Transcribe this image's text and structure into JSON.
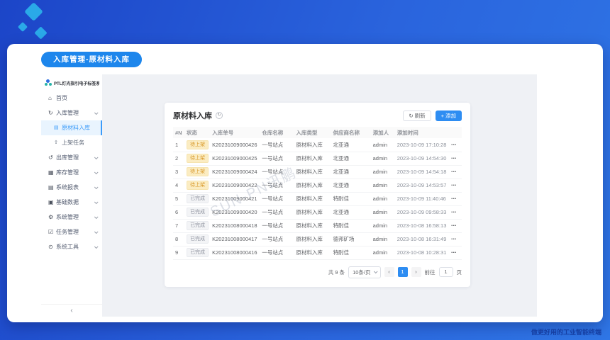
{
  "page_badge": "入库管理-原材料入库",
  "footer": "做更好用的工业智能终端",
  "watermark": "SUN-PN讯鹏",
  "colors": {
    "accent_blue": "#2e8df2",
    "pill_blue": "#1d86ec",
    "warning_tag": "#d99a2b",
    "sidebar_active": "#3b9bfa"
  },
  "sidebar": {
    "logo_text": "PTL灯光指引电子标签系统",
    "collapse_icon": "chevron-left-icon",
    "items": [
      {
        "label": "首页",
        "icon": "home-icon",
        "caret": false
      },
      {
        "label": "入库管理",
        "icon": "inbound-icon",
        "caret": true,
        "expanded": true,
        "children": [
          {
            "label": "原材料入库",
            "icon": "material-doc-icon",
            "active": true
          },
          {
            "label": "上架任务",
            "icon": "shelving-icon",
            "active": false
          }
        ]
      },
      {
        "label": "出库管理",
        "icon": "outbound-icon",
        "caret": true
      },
      {
        "label": "库存管理",
        "icon": "inventory-icon",
        "caret": true
      },
      {
        "label": "系统报表",
        "icon": "report-icon",
        "caret": true
      },
      {
        "label": "基础数据",
        "icon": "base-data-icon",
        "caret": true
      },
      {
        "label": "系统管理",
        "icon": "gear-icon",
        "caret": true
      },
      {
        "label": "任务管理",
        "icon": "task-icon",
        "caret": true
      },
      {
        "label": "系统工具",
        "icon": "tools-icon",
        "caret": true
      }
    ]
  },
  "panel": {
    "title": "原材料入库",
    "title_info_icon": "refresh-circle-icon",
    "buttons": {
      "refresh": "刷新",
      "refresh_icon": "refresh-icon",
      "add": "添加",
      "add_icon": "plus-icon"
    },
    "table": {
      "columns": [
        "#N",
        "状态",
        "入库单号",
        "仓库名称",
        "入库类型",
        "供应商名称",
        "添加人",
        "添加时间",
        ""
      ],
      "row_more_icon": "more-icon",
      "rows": [
        {
          "n": "1",
          "status": "待上架",
          "status_type": "warning",
          "order_no": "K20231009000426",
          "warehouse": "一号站点",
          "inbound_type": "原材料入库",
          "supplier": "北亚通",
          "added_by": "admin",
          "added_at": "2023-10-09 17:10:28"
        },
        {
          "n": "2",
          "status": "待上架",
          "status_type": "warning",
          "order_no": "K20231009000425",
          "warehouse": "一号站点",
          "inbound_type": "原材料入库",
          "supplier": "北亚通",
          "added_by": "admin",
          "added_at": "2023-10-09 14:54:30"
        },
        {
          "n": "3",
          "status": "待上架",
          "status_type": "warning",
          "order_no": "K20231009000424",
          "warehouse": "一号站点",
          "inbound_type": "原材料入库",
          "supplier": "北亚通",
          "added_by": "admin",
          "added_at": "2023-10-09 14:54:18"
        },
        {
          "n": "4",
          "status": "待上架",
          "status_type": "warning",
          "order_no": "K20231009000422",
          "warehouse": "一号站点",
          "inbound_type": "原材料入库",
          "supplier": "北亚通",
          "added_by": "admin",
          "added_at": "2023-10-09 14:53:57"
        },
        {
          "n": "5",
          "status": "已完成",
          "status_type": "info",
          "order_no": "K20231009000421",
          "warehouse": "一号站点",
          "inbound_type": "原材料入库",
          "supplier": "特耐佳",
          "added_by": "admin",
          "added_at": "2023-10-09 11:40:46"
        },
        {
          "n": "6",
          "status": "已完成",
          "status_type": "info",
          "order_no": "K20231009000420",
          "warehouse": "一号站点",
          "inbound_type": "原材料入库",
          "supplier": "北亚通",
          "added_by": "admin",
          "added_at": "2023-10-09 09:58:33"
        },
        {
          "n": "7",
          "status": "已完成",
          "status_type": "info",
          "order_no": "K20231008000418",
          "warehouse": "一号站点",
          "inbound_type": "原材料入库",
          "supplier": "特耐佳",
          "added_by": "admin",
          "added_at": "2023-10-08 16:58:13"
        },
        {
          "n": "8",
          "status": "已完成",
          "status_type": "info",
          "order_no": "K20231008000417",
          "warehouse": "一号站点",
          "inbound_type": "原材料入库",
          "supplier": "德邦矿场",
          "added_by": "admin",
          "added_at": "2023-10-08 16:31:49"
        },
        {
          "n": "9",
          "status": "已完成",
          "status_type": "info",
          "order_no": "K20231008000416",
          "warehouse": "一号站点",
          "inbound_type": "原材料入库",
          "supplier": "特耐佳",
          "added_by": "admin",
          "added_at": "2023-10-08 10:28:31"
        }
      ]
    },
    "pagination": {
      "total": "共 9 条",
      "page_size": "10条/页",
      "prev": "‹",
      "current_page": "1",
      "next": "›",
      "goto_label": "前往",
      "goto_value": "1",
      "goto_unit": "页"
    }
  }
}
